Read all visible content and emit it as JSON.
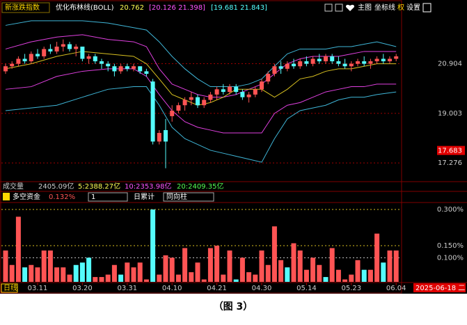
{
  "header": {
    "title": "新涨跌指数",
    "indicator": "优化布林线(BOLL)",
    "mid": "20.762",
    "inner": "[20.126  21.398]",
    "outer": "[19.681  21.843]",
    "buttons": [
      "主图",
      "坐标线",
      "权",
      "设置"
    ]
  },
  "volume": {
    "label": "成交量",
    "total": "2405.09亿",
    "ma": [
      "5:2388.27亿",
      "10:2353.98亿",
      "20:2409.35亿"
    ]
  },
  "controls": {
    "selects": [
      "1",
      "同向柱"
    ],
    "cumulative": "日累计"
  },
  "footer": {
    "period": "日线",
    "date": "2025-06-18 二"
  },
  "caption": "（图 3）",
  "chart_data": [
    {
      "type": "candlestick",
      "log_scale": true,
      "ylim": [
        16.8,
        23.0
      ],
      "yticks": [
        20.904,
        19.003,
        17.276
      ],
      "highlight_tick": 17.683,
      "grid": true,
      "up_color": "#ff5454",
      "down_color": "#54fcfc",
      "ohlc": [
        [
          20.6,
          20.9,
          20.5,
          20.8
        ],
        [
          20.8,
          21.0,
          20.7,
          20.9
        ],
        [
          20.9,
          21.2,
          20.8,
          21.1
        ],
        [
          21.1,
          21.3,
          20.9,
          21.0
        ],
        [
          21.0,
          21.4,
          20.9,
          21.3
        ],
        [
          21.3,
          21.5,
          21.1,
          21.2
        ],
        [
          21.2,
          21.6,
          21.1,
          21.5
        ],
        [
          21.5,
          21.7,
          21.3,
          21.4
        ],
        [
          21.4,
          21.8,
          21.3,
          21.6
        ],
        [
          21.6,
          21.9,
          21.4,
          21.7
        ],
        [
          21.7,
          21.8,
          21.4,
          21.5
        ],
        [
          21.5,
          21.7,
          21.2,
          21.6
        ],
        [
          21.6,
          21.6,
          21.0,
          21.1
        ],
        [
          21.1,
          21.3,
          20.9,
          21.2
        ],
        [
          21.2,
          21.3,
          20.9,
          21.0
        ],
        [
          21.0,
          21.1,
          20.7,
          20.9
        ],
        [
          20.9,
          21.0,
          20.6,
          20.8
        ],
        [
          20.8,
          20.9,
          20.4,
          20.6
        ],
        [
          20.6,
          20.9,
          20.5,
          20.8
        ],
        [
          20.8,
          20.9,
          20.6,
          20.7
        ],
        [
          20.7,
          20.9,
          20.6,
          20.8
        ],
        [
          20.8,
          20.8,
          20.5,
          20.6
        ],
        [
          20.6,
          20.7,
          20.4,
          20.5
        ],
        [
          20.2,
          20.3,
          17.9,
          18.0
        ],
        [
          18.0,
          18.4,
          17.9,
          18.3
        ],
        [
          18.4,
          18.8,
          17.1,
          18.0
        ],
        [
          18.9,
          19.3,
          18.7,
          19.1
        ],
        [
          19.1,
          19.4,
          19.0,
          19.3
        ],
        [
          19.3,
          19.6,
          19.1,
          19.5
        ],
        [
          19.5,
          19.8,
          19.3,
          19.6
        ],
        [
          19.6,
          19.7,
          19.2,
          19.3
        ],
        [
          19.3,
          19.6,
          19.2,
          19.5
        ],
        [
          19.5,
          19.8,
          19.4,
          19.7
        ],
        [
          19.7,
          20.0,
          19.5,
          19.9
        ],
        [
          19.9,
          20.1,
          19.7,
          19.8
        ],
        [
          19.8,
          20.1,
          19.7,
          20.0
        ],
        [
          20.0,
          20.1,
          19.7,
          19.8
        ],
        [
          19.8,
          19.9,
          19.5,
          19.6
        ],
        [
          19.6,
          19.8,
          19.4,
          19.7
        ],
        [
          19.7,
          20.0,
          19.6,
          19.9
        ],
        [
          19.9,
          20.3,
          19.8,
          20.2
        ],
        [
          20.2,
          20.6,
          20.1,
          20.5
        ],
        [
          20.5,
          20.9,
          20.4,
          20.8
        ],
        [
          20.8,
          21.0,
          20.5,
          20.7
        ],
        [
          20.7,
          21.0,
          20.6,
          20.9
        ],
        [
          20.9,
          21.1,
          20.7,
          20.8
        ],
        [
          20.8,
          21.1,
          20.7,
          21.0
        ],
        [
          21.0,
          21.2,
          20.8,
          20.9
        ],
        [
          20.9,
          21.2,
          20.8,
          21.1
        ],
        [
          21.1,
          21.3,
          20.9,
          21.0
        ],
        [
          21.0,
          21.3,
          20.9,
          21.2
        ],
        [
          21.2,
          21.3,
          20.9,
          21.0
        ],
        [
          21.0,
          21.2,
          20.8,
          20.9
        ],
        [
          20.9,
          21.1,
          20.7,
          20.8
        ],
        [
          20.8,
          21.0,
          20.6,
          20.9
        ],
        [
          20.9,
          21.1,
          20.8,
          21.0
        ],
        [
          21.0,
          21.2,
          20.8,
          20.9
        ],
        [
          20.9,
          21.1,
          20.7,
          21.0
        ],
        [
          21.0,
          21.2,
          20.9,
          21.1
        ],
        [
          21.1,
          21.3,
          20.9,
          21.0
        ],
        [
          21.0,
          21.2,
          20.9,
          21.1
        ],
        [
          21.1,
          21.3,
          21.0,
          21.2
        ]
      ],
      "band_x": [
        0,
        4,
        8,
        12,
        16,
        20,
        22,
        24,
        26,
        28,
        30,
        32,
        34,
        36,
        38,
        40,
        42,
        44,
        46,
        48,
        50,
        52,
        54,
        56,
        58,
        61
      ],
      "series": [
        {
          "color": "#3fb6d8",
          "values": [
            22.5,
            22.7,
            22.7,
            22.7,
            22.6,
            22.4,
            22.3,
            21.8,
            21.2,
            20.7,
            20.3,
            20.0,
            20.0,
            20.0,
            20.1,
            20.3,
            20.8,
            21.3,
            21.5,
            21.5,
            21.5,
            21.6,
            21.6,
            21.7,
            21.8,
            21.6
          ]
        },
        {
          "color": "#e040e0",
          "values": [
            21.5,
            21.8,
            22.0,
            22.1,
            21.9,
            21.8,
            21.6,
            20.7,
            20.1,
            19.9,
            19.7,
            19.6,
            19.6,
            19.7,
            19.9,
            20.1,
            20.5,
            20.9,
            21.1,
            21.2,
            21.2,
            21.2,
            21.3,
            21.4,
            21.4,
            21.4
          ]
        },
        {
          "color": "#d8c020",
          "values": [
            20.7,
            20.9,
            21.2,
            21.4,
            21.3,
            21.2,
            20.9,
            20.3,
            19.7,
            19.5,
            19.3,
            19.4,
            19.6,
            19.9,
            19.9,
            19.9,
            19.6,
            19.9,
            20.3,
            20.4,
            20.6,
            20.7,
            20.7,
            20.8,
            20.9,
            20.9
          ]
        },
        {
          "color": "#e040e0",
          "values": [
            19.9,
            20.0,
            20.4,
            20.6,
            20.7,
            20.7,
            20.4,
            19.7,
            19.1,
            18.7,
            18.5,
            18.4,
            18.3,
            18.3,
            18.3,
            18.3,
            19.0,
            19.3,
            19.4,
            19.6,
            19.8,
            19.9,
            20.0,
            20.0,
            20.1,
            20.1
          ]
        },
        {
          "color": "#3fb6d8",
          "values": [
            19.1,
            19.2,
            19.3,
            19.6,
            19.9,
            20.0,
            20.0,
            19.3,
            18.5,
            18.1,
            17.9,
            17.7,
            17.6,
            17.5,
            17.4,
            17.3,
            18.1,
            18.8,
            19.1,
            19.2,
            19.3,
            19.5,
            19.6,
            19.6,
            19.7,
            19.8
          ]
        }
      ]
    },
    {
      "type": "bar",
      "title": "多空资金",
      "value_label": "0.132%",
      "ylim": [
        0,
        0.326
      ],
      "yticks": [
        {
          "value": 0.3,
          "label": "0.300%"
        },
        {
          "value": 0.15,
          "label": "0.150%"
        },
        {
          "value": 0.1,
          "label": "0.100%"
        }
      ],
      "xticks": [
        {
          "value": 5,
          "label": "03.11"
        },
        {
          "value": 12,
          "label": "03.20"
        },
        {
          "value": 19,
          "label": "03.31"
        },
        {
          "value": 26,
          "label": "04.10"
        },
        {
          "value": 33,
          "label": "04.21"
        },
        {
          "value": 40,
          "label": "04.30"
        },
        {
          "value": 47,
          "label": "05.14"
        },
        {
          "value": 54,
          "label": "05.23"
        },
        {
          "value": 61,
          "label": "06.04"
        }
      ],
      "values": [
        0.13,
        0.07,
        0.27,
        0.06,
        0.07,
        0.06,
        0.13,
        0.13,
        0.06,
        0.06,
        0.03,
        0.07,
        0.08,
        0.1,
        0.02,
        0.02,
        0.03,
        0.07,
        0.03,
        0.08,
        0.06,
        0.08,
        0.01,
        0.3,
        0.03,
        0.11,
        0.1,
        0.03,
        0.14,
        0.04,
        0.08,
        0.01,
        0.14,
        0.15,
        0.03,
        0.13,
        0.01,
        0.1,
        0.04,
        0.03,
        0.13,
        0.07,
        0.23,
        0.09,
        0.06,
        0.16,
        0.13,
        0.05,
        0.1,
        0.07,
        0.02,
        0.14,
        0.05,
        0.01,
        0.03,
        0.09,
        0.05,
        0.05,
        0.2,
        0.08,
        0.13,
        0.13
      ],
      "colors": [
        "#ff5454",
        "#ff5454",
        "#ff5454",
        "#54fcfc",
        "#ff5454",
        "#ff5454",
        "#ff5454",
        "#ff5454",
        "#ff5454",
        "#ff5454",
        "#ff5454",
        "#54fcfc",
        "#54fcfc",
        "#54fcfc",
        "#ff5454",
        "#ff5454",
        "#ff5454",
        "#ff5454",
        "#54fcfc",
        "#ff5454",
        "#ff5454",
        "#ff5454",
        "#ff5454",
        "#54fcfc",
        "#ff5454",
        "#ff5454",
        "#ff5454",
        "#ff5454",
        "#ff5454",
        "#ff5454",
        "#ff5454",
        "#ff5454",
        "#ff5454",
        "#ff5454",
        "#ff5454",
        "#ff5454",
        "#54fcfc",
        "#ff5454",
        "#ff5454",
        "#ff5454",
        "#ff5454",
        "#ff5454",
        "#ff5454",
        "#ff5454",
        "#54fcfc",
        "#ff5454",
        "#ff5454",
        "#ff5454",
        "#ff5454",
        "#ff5454",
        "#54fcfc",
        "#ff5454",
        "#ff5454",
        "#ff5454",
        "#ff5454",
        "#ff5454",
        "#54fcfc",
        "#ff5454",
        "#ff5454",
        "#54fcfc",
        "#ff5454",
        "#ff5454"
      ]
    }
  ]
}
